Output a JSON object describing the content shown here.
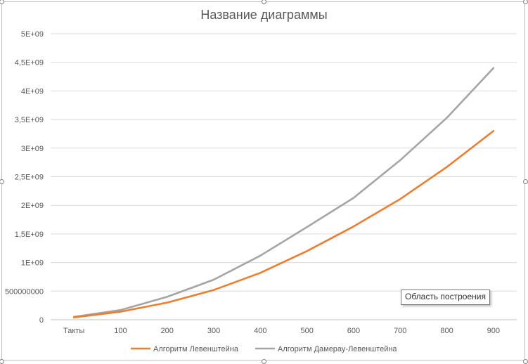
{
  "chart_data": {
    "type": "line",
    "title": "Название диаграммы",
    "xlabel": "",
    "ylabel": "",
    "categories": [
      "Такты",
      "100",
      "200",
      "300",
      "400",
      "500",
      "600",
      "700",
      "800",
      "900"
    ],
    "y_ticks": [
      "0",
      "500000000",
      "1E+09",
      "1,5E+09",
      "2E+09",
      "2,5E+09",
      "3E+09",
      "3,5E+09",
      "4E+09",
      "4,5E+09",
      "5E+09"
    ],
    "ylim": [
      0,
      5000000000
    ],
    "grid": true,
    "legend_position": "bottom",
    "series": [
      {
        "name": "Алгоритм Левенштейна",
        "color": "#ED7D31",
        "values": [
          40000000,
          140000000,
          300000000,
          520000000,
          820000000,
          1200000000,
          1630000000,
          2110000000,
          2670000000,
          3300000000
        ]
      },
      {
        "name": "Алгоритм Дамерау-Левенштейна",
        "color": "#A5A5A5",
        "values": [
          50000000,
          170000000,
          400000000,
          700000000,
          1120000000,
          1620000000,
          2130000000,
          2790000000,
          3530000000,
          4400000000
        ]
      }
    ]
  },
  "tooltip": {
    "text": "Область построения"
  }
}
